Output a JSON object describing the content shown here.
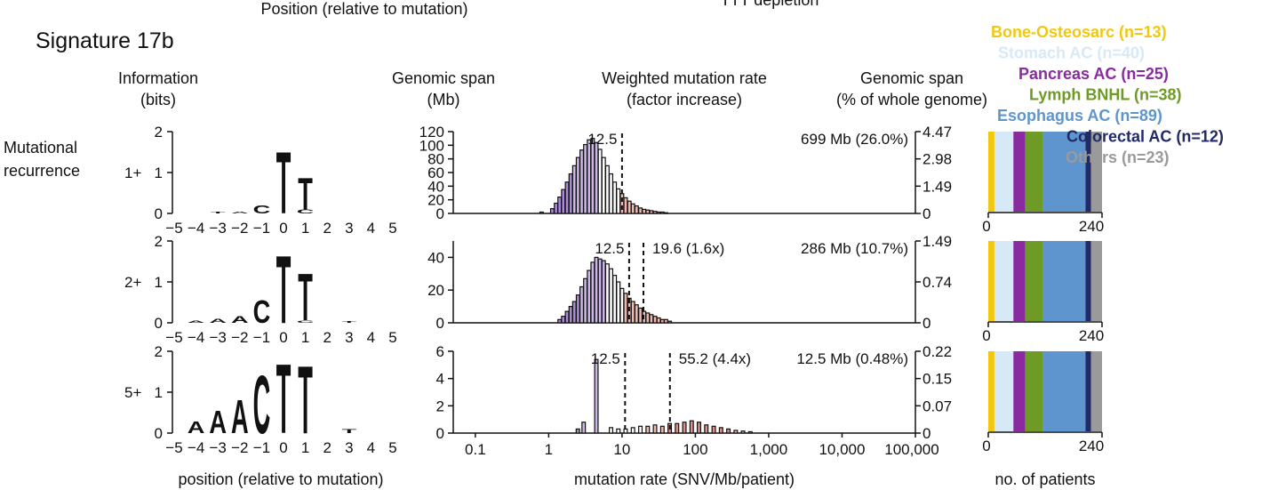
{
  "header": {
    "cut_top_left": "Position (relative to mutation)",
    "cut_top_center": "TTT depletion",
    "title": "Signature 17b",
    "col_info_line1": "Information",
    "col_info_line2": "(bits)",
    "col_span_line1": "Genomic span",
    "col_span_line2": "(Mb)",
    "col_rate_line1": "Weighted mutation rate",
    "col_rate_line2": "(factor increase)",
    "col_pct_line1": "Genomic span",
    "col_pct_line2": "(% of whole genome)",
    "row_label_line1": "Mutational",
    "row_label_line2": "recurrence"
  },
  "footer": {
    "logo_xlabel": "position (relative to mutation)",
    "hist_xlabel": "mutation rate (SNV/Mb/patient)",
    "patients_xlabel": "no. of patients"
  },
  "legend": [
    {
      "label": "Bone-Osteosarc (n=13)",
      "color": "#f2c80f",
      "n": 13
    },
    {
      "label": "Stomach AC (n=40)",
      "color": "#d7e9f7",
      "n": 40
    },
    {
      "label": "Pancreas AC (n=25)",
      "color": "#8a2aa0",
      "n": 25
    },
    {
      "label": "Lymph BNHL (n=38)",
      "color": "#6e9a26",
      "n": 38
    },
    {
      "label": "Esophagus AC (n=89)",
      "color": "#5e95cf",
      "n": 89
    },
    {
      "label": "Colorectal AC (n=12)",
      "color": "#222a66",
      "n": 12
    },
    {
      "label": "Others (n=23)",
      "color": "#9a9a9a",
      "n": 23
    }
  ],
  "chart_data": [
    {
      "type": "bar",
      "name": "sequence-logo",
      "title": "Signature 17b",
      "xlabel": "position (relative to mutation)",
      "ylabel": "Information (bits)",
      "ylim": [
        0,
        2
      ],
      "yticks": [
        "0",
        "1",
        "2"
      ],
      "xticks": [
        "−5",
        "−4",
        "−3",
        "−2",
        "−1",
        "0",
        "1",
        "2",
        "3",
        "4",
        "5"
      ],
      "rows": [
        {
          "label": "1+",
          "letters": [
            {
              "pos": -3,
              "base": "T",
              "bits": 0.03
            },
            {
              "pos": -2,
              "base": "A",
              "bits": 0.05
            },
            {
              "pos": -1,
              "base": "C",
              "bits": 0.22
            },
            {
              "pos": 0,
              "base": "T",
              "bits": 1.65
            },
            {
              "pos": 1,
              "base": "T",
              "bits": 0.85
            },
            {
              "pos": 1,
              "base": "C",
              "bits": 0.1
            }
          ]
        },
        {
          "label": "2+",
          "letters": [
            {
              "pos": -4,
              "base": "A",
              "bits": 0.06
            },
            {
              "pos": -3,
              "base": "A",
              "bits": 0.1
            },
            {
              "pos": -2,
              "base": "A",
              "bits": 0.18
            },
            {
              "pos": -1,
              "base": "C",
              "bits": 0.6
            },
            {
              "pos": 0,
              "base": "T",
              "bits": 1.8
            },
            {
              "pos": 1,
              "base": "T",
              "bits": 1.25
            },
            {
              "pos": 1,
              "base": "C",
              "bits": 0.06
            },
            {
              "pos": 3,
              "base": "T",
              "bits": 0.04
            }
          ]
        },
        {
          "label": "5+",
          "letters": [
            {
              "pos": -4,
              "base": "A",
              "bits": 0.3
            },
            {
              "pos": -3,
              "base": "A",
              "bits": 0.6
            },
            {
              "pos": -2,
              "base": "A",
              "bits": 0.9
            },
            {
              "pos": -1,
              "base": "C",
              "bits": 1.55
            },
            {
              "pos": 0,
              "base": "T",
              "bits": 1.85
            },
            {
              "pos": 1,
              "base": "T",
              "bits": 1.8
            },
            {
              "pos": 3,
              "base": "T",
              "bits": 0.1
            }
          ]
        }
      ]
    },
    {
      "type": "bar",
      "name": "mutation-rate-histograms",
      "xlabel": "mutation rate (SNV/Mb/patient)",
      "xscale": "log",
      "xlim": [
        0.05,
        100000
      ],
      "xticks": [
        "0.1",
        "1",
        "10",
        "100",
        "1,000",
        "10,000",
        "100,000"
      ],
      "rows": [
        {
          "label": "1+",
          "ymax": 120,
          "yticks": [
            "0",
            "20",
            "40",
            "60",
            "80",
            "100",
            "120"
          ],
          "right_ticks": [
            "0",
            "1.49",
            "2.98",
            "4.47"
          ],
          "baseline": "12.5",
          "annotation": "",
          "span_text": "699 Mb (26.0%)",
          "dash_x": [
            10
          ],
          "bars": [
            {
              "x": 0.8,
              "y": 2,
              "g": "purple"
            },
            {
              "x": 1.12,
              "y": 7,
              "g": "purple"
            },
            {
              "x": 1.26,
              "y": 15,
              "g": "purple"
            },
            {
              "x": 1.41,
              "y": 24,
              "g": "purple"
            },
            {
              "x": 1.58,
              "y": 35,
              "g": "purple"
            },
            {
              "x": 1.78,
              "y": 46,
              "g": "purple"
            },
            {
              "x": 2.0,
              "y": 58,
              "g": "purple"
            },
            {
              "x": 2.24,
              "y": 70,
              "g": "purple"
            },
            {
              "x": 2.51,
              "y": 82,
              "g": "purple"
            },
            {
              "x": 2.82,
              "y": 93,
              "g": "purple"
            },
            {
              "x": 3.16,
              "y": 101,
              "g": "purple"
            },
            {
              "x": 3.55,
              "y": 108,
              "g": "purple"
            },
            {
              "x": 3.98,
              "y": 110,
              "g": "purple"
            },
            {
              "x": 4.47,
              "y": 104,
              "g": "purple"
            },
            {
              "x": 5.01,
              "y": 94,
              "g": "white"
            },
            {
              "x": 5.62,
              "y": 82,
              "g": "white"
            },
            {
              "x": 6.31,
              "y": 70,
              "g": "white"
            },
            {
              "x": 7.08,
              "y": 58,
              "g": "white"
            },
            {
              "x": 7.94,
              "y": 46,
              "g": "white"
            },
            {
              "x": 8.91,
              "y": 36,
              "g": "white"
            },
            {
              "x": 10.0,
              "y": 29,
              "g": "pink"
            },
            {
              "x": 11.2,
              "y": 23,
              "g": "pink"
            },
            {
              "x": 12.6,
              "y": 18,
              "g": "pink"
            },
            {
              "x": 14.1,
              "y": 14,
              "g": "pink"
            },
            {
              "x": 15.8,
              "y": 11,
              "g": "pink"
            },
            {
              "x": 17.8,
              "y": 8,
              "g": "pink"
            },
            {
              "x": 20.0,
              "y": 6,
              "g": "pink"
            },
            {
              "x": 22.4,
              "y": 5,
              "g": "pink"
            },
            {
              "x": 25.1,
              "y": 4,
              "g": "pink"
            },
            {
              "x": 28.2,
              "y": 3,
              "g": "pink"
            },
            {
              "x": 31.6,
              "y": 2,
              "g": "pink"
            },
            {
              "x": 35.5,
              "y": 2,
              "g": "pink"
            },
            {
              "x": 39.8,
              "y": 1,
              "g": "pink"
            }
          ]
        },
        {
          "label": "2+",
          "ymax": 50,
          "yticks": [
            "0",
            "20",
            "40"
          ],
          "right_ticks": [
            "0",
            "0.74",
            "1.49"
          ],
          "baseline": "12.5",
          "annotation": "19.6 (1.6x)",
          "span_text": "286 Mb (10.7%)",
          "dash_x": [
            12.5,
            19.6
          ],
          "bars": [
            {
              "x": 1.41,
              "y": 2,
              "g": "purple"
            },
            {
              "x": 1.58,
              "y": 4,
              "g": "purple"
            },
            {
              "x": 1.78,
              "y": 7,
              "g": "purple"
            },
            {
              "x": 2.0,
              "y": 10,
              "g": "purple"
            },
            {
              "x": 2.24,
              "y": 13,
              "g": "purple"
            },
            {
              "x": 2.51,
              "y": 17,
              "g": "purple"
            },
            {
              "x": 2.82,
              "y": 22,
              "g": "purple"
            },
            {
              "x": 3.16,
              "y": 27,
              "g": "purple"
            },
            {
              "x": 3.55,
              "y": 32,
              "g": "purple"
            },
            {
              "x": 3.98,
              "y": 37,
              "g": "purple"
            },
            {
              "x": 4.47,
              "y": 40,
              "g": "purple"
            },
            {
              "x": 5.01,
              "y": 39,
              "g": "purple"
            },
            {
              "x": 5.62,
              "y": 38,
              "g": "purple"
            },
            {
              "x": 6.31,
              "y": 36,
              "g": "white"
            },
            {
              "x": 7.08,
              "y": 33,
              "g": "white"
            },
            {
              "x": 7.94,
              "y": 29,
              "g": "white"
            },
            {
              "x": 8.91,
              "y": 25,
              "g": "white"
            },
            {
              "x": 10.0,
              "y": 21,
              "g": "white"
            },
            {
              "x": 11.2,
              "y": 18,
              "g": "pink"
            },
            {
              "x": 12.6,
              "y": 15,
              "g": "pink"
            },
            {
              "x": 14.1,
              "y": 13,
              "g": "pink"
            },
            {
              "x": 15.8,
              "y": 11,
              "g": "pink"
            },
            {
              "x": 17.8,
              "y": 9,
              "g": "pink"
            },
            {
              "x": 20.0,
              "y": 7,
              "g": "pink"
            },
            {
              "x": 22.4,
              "y": 6,
              "g": "pink"
            },
            {
              "x": 25.1,
              "y": 5,
              "g": "pink"
            },
            {
              "x": 28.2,
              "y": 4,
              "g": "pink"
            },
            {
              "x": 31.6,
              "y": 3,
              "g": "pink"
            },
            {
              "x": 35.5,
              "y": 2,
              "g": "pink"
            },
            {
              "x": 39.8,
              "y": 2,
              "g": "pink"
            },
            {
              "x": 44.7,
              "y": 1,
              "g": "pink"
            }
          ]
        },
        {
          "label": "5+",
          "ymax": 6,
          "yticks": [
            "0",
            "2",
            "4",
            "6"
          ],
          "right_ticks": [
            "0",
            "0.07",
            "0.15",
            "0.22"
          ],
          "baseline": "12.5",
          "annotation": "55.2 (4.4x)",
          "span_text": "12.5 Mb (0.48%)",
          "dash_x": [
            11,
            45
          ],
          "bars": [
            {
              "x": 2.5,
              "y": 0.3,
              "g": "purple"
            },
            {
              "x": 3.0,
              "y": 0.8,
              "g": "purple"
            },
            {
              "x": 4.47,
              "y": 5.4,
              "g": "purple"
            },
            {
              "x": 7.08,
              "y": 0.4,
              "g": "white"
            },
            {
              "x": 8.91,
              "y": 0.3,
              "g": "white"
            },
            {
              "x": 11.2,
              "y": 0.3,
              "g": "white"
            },
            {
              "x": 14.1,
              "y": 0.4,
              "g": "white"
            },
            {
              "x": 17.8,
              "y": 0.5,
              "g": "white"
            },
            {
              "x": 22.4,
              "y": 0.5,
              "g": "pink"
            },
            {
              "x": 28.2,
              "y": 0.6,
              "g": "pink"
            },
            {
              "x": 35.5,
              "y": 0.5,
              "g": "pink"
            },
            {
              "x": 44.7,
              "y": 0.7,
              "g": "pink"
            },
            {
              "x": 56.2,
              "y": 0.7,
              "g": "pink"
            },
            {
              "x": 70.8,
              "y": 0.8,
              "g": "pink"
            },
            {
              "x": 89.1,
              "y": 0.9,
              "g": "pink"
            },
            {
              "x": 112,
              "y": 0.8,
              "g": "pink"
            },
            {
              "x": 141,
              "y": 0.6,
              "g": "pink"
            },
            {
              "x": 178,
              "y": 0.5,
              "g": "pink"
            },
            {
              "x": 224,
              "y": 0.4,
              "g": "pink"
            },
            {
              "x": 282,
              "y": 0.3,
              "g": "pink"
            },
            {
              "x": 355,
              "y": 0.2,
              "g": "pink"
            },
            {
              "x": 447,
              "y": 0.15,
              "g": "pink"
            },
            {
              "x": 562,
              "y": 0.1,
              "g": "pink"
            }
          ]
        }
      ]
    },
    {
      "type": "bar",
      "name": "patients-per-cohort",
      "xlabel": "no. of patients",
      "xlim": [
        0,
        240
      ],
      "xticks": [
        "0",
        "240"
      ],
      "series": [
        {
          "name": "Bone-Osteosarc",
          "value": 13
        },
        {
          "name": "Stomach AC",
          "value": 40
        },
        {
          "name": "Pancreas AC",
          "value": 25
        },
        {
          "name": "Lymph BNHL",
          "value": 38
        },
        {
          "name": "Esophagus AC",
          "value": 89
        },
        {
          "name": "Colorectal AC",
          "value": 12
        },
        {
          "name": "Others",
          "value": 23
        }
      ],
      "rows": [
        "1+",
        "2+",
        "5+"
      ]
    }
  ],
  "colors": {
    "A": "#27a13a",
    "C": "#2e56a6",
    "G": "#f0b521",
    "T": "#d83a35",
    "purple": "#a98bd6",
    "purple_light": "#cdb7ea",
    "white": "#ffffff",
    "pink": "#f2b8b0",
    "pink_dark": "#e08f85"
  }
}
